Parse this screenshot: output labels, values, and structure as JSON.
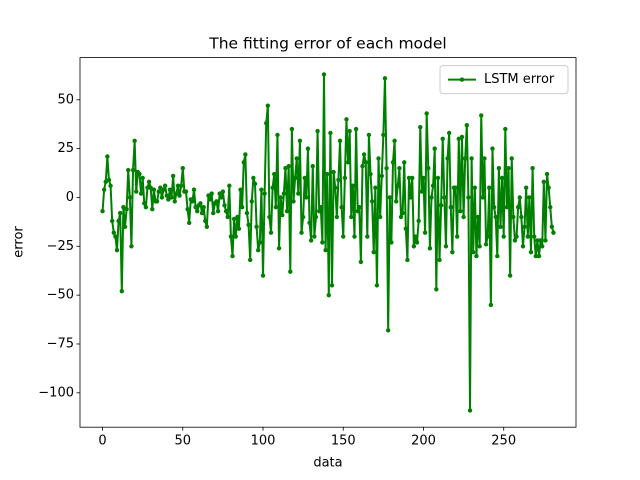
{
  "chart_data": {
    "type": "line",
    "title": "The fitting error of each model",
    "xlabel": "data",
    "ylabel": "error",
    "x": [
      0,
      1,
      2,
      3,
      4,
      5,
      6,
      7,
      8,
      9,
      10,
      11,
      12,
      13,
      14,
      15,
      16,
      17,
      18,
      19,
      20,
      21,
      22,
      23,
      24,
      25,
      26,
      27,
      28,
      29,
      30,
      31,
      32,
      33,
      34,
      35,
      36,
      37,
      38,
      39,
      40,
      41,
      42,
      43,
      44,
      45,
      46,
      47,
      48,
      49,
      50,
      51,
      52,
      53,
      54,
      55,
      56,
      57,
      58,
      59,
      60,
      61,
      62,
      63,
      64,
      65,
      66,
      67,
      68,
      69,
      70,
      71,
      72,
      73,
      74,
      75,
      76,
      77,
      78,
      79,
      80,
      81,
      82,
      83,
      84,
      85,
      86,
      87,
      88,
      89,
      90,
      91,
      92,
      93,
      94,
      95,
      96,
      97,
      98,
      99,
      100,
      101,
      102,
      103,
      104,
      105,
      106,
      107,
      108,
      109,
      110,
      111,
      112,
      113,
      114,
      115,
      116,
      117,
      118,
      119,
      120,
      121,
      122,
      123,
      124,
      125,
      126,
      127,
      128,
      129,
      130,
      131,
      132,
      133,
      134,
      135,
      136,
      137,
      138,
      139,
      140,
      141,
      142,
      143,
      144,
      145,
      146,
      147,
      148,
      149,
      150,
      151,
      152,
      153,
      154,
      155,
      156,
      157,
      158,
      159,
      160,
      161,
      162,
      163,
      164,
      165,
      166,
      167,
      168,
      169,
      170,
      171,
      172,
      173,
      174,
      175,
      176,
      177,
      178,
      179,
      180,
      181,
      182,
      183,
      184,
      185,
      186,
      187,
      188,
      189,
      190,
      191,
      192,
      193,
      194,
      195,
      196,
      197,
      198,
      199,
      200,
      201,
      202,
      203,
      204,
      205,
      206,
      207,
      208,
      209,
      210,
      211,
      212,
      213,
      214,
      215,
      216,
      217,
      218,
      219,
      220,
      221,
      222,
      223,
      224,
      225,
      226,
      227,
      228,
      229,
      230,
      231,
      232,
      233,
      234,
      235,
      236,
      237,
      238,
      239,
      240,
      241,
      242,
      243,
      244,
      245,
      246,
      247,
      248,
      249,
      250,
      251,
      252,
      253,
      254,
      255,
      256,
      257,
      258,
      259,
      260,
      261,
      262,
      263,
      264,
      265,
      266,
      267,
      268,
      269,
      270,
      271,
      272,
      273,
      274,
      275,
      276,
      277,
      278,
      279,
      280,
      281
    ],
    "series": [
      {
        "name": "LSTM error",
        "color": "#008000",
        "values": [
          -7,
          4,
          8,
          21,
          9,
          6,
          -12,
          -18,
          -20,
          -27,
          -12,
          -8,
          -48,
          -5,
          -15,
          -6,
          14,
          0,
          -25,
          14,
          29,
          3,
          13,
          12,
          2,
          10,
          -3,
          -5,
          5,
          8,
          5,
          -6,
          4,
          -2,
          -2,
          3,
          5,
          0,
          4,
          6,
          1,
          -1,
          4,
          0,
          11,
          -2,
          2,
          6,
          1,
          6,
          15,
          3,
          3,
          -6,
          -13,
          -1,
          -2,
          4,
          -5,
          -7,
          -4,
          -3,
          -8,
          -5,
          -12,
          -15,
          1,
          -1,
          2,
          -8,
          -3,
          -2,
          -7,
          2,
          0,
          3,
          -4,
          -7,
          -10,
          6,
          -20,
          -30,
          -11,
          -20,
          -10,
          -16,
          4,
          -5,
          18,
          22,
          -8,
          -14,
          -32,
          -2,
          10,
          7,
          -15,
          -27,
          -23,
          4,
          -40,
          2,
          38,
          47,
          -10,
          -18,
          5,
          12,
          -5,
          32,
          -26,
          0,
          -9,
          2,
          15,
          -7,
          16,
          -38,
          35,
          -2,
          10,
          20,
          2,
          29,
          -18,
          -10,
          10,
          0,
          25,
          -13,
          -22,
          16,
          -20,
          -10,
          34,
          -7,
          -5,
          -23,
          63,
          -27,
          12,
          -50,
          33,
          -45,
          13,
          5,
          -10,
          9,
          29,
          -5,
          -20,
          10,
          40,
          18,
          34,
          -10,
          6,
          -20,
          35,
          -7,
          -5,
          -33,
          16,
          22,
          18,
          -20,
          32,
          12,
          -2,
          -28,
          5,
          -45,
          20,
          -10,
          11,
          32,
          61,
          15,
          -68,
          0,
          -23,
          18,
          29,
          -2,
          6,
          15,
          -10,
          -8,
          18,
          -16,
          -32,
          10,
          0,
          10,
          -25,
          -20,
          -23,
          -12,
          36,
          3,
          10,
          -18,
          43,
          15,
          -26,
          0,
          6,
          25,
          -47,
          10,
          -32,
          -4,
          30,
          0,
          -25,
          20,
          33,
          -5,
          -28,
          5,
          5,
          -20,
          30,
          -7,
          31,
          -10,
          20,
          37,
          0,
          -109,
          20,
          -28,
          5,
          -30,
          -10,
          -25,
          42,
          0,
          20,
          -24,
          -20,
          5,
          -55,
          25,
          -5,
          -10,
          -30,
          15,
          -15,
          10,
          -20,
          35,
          -5,
          15,
          -40,
          20,
          -10,
          -22,
          -20,
          -5,
          0,
          -10,
          -25,
          -15,
          5,
          -20,
          0,
          -28,
          15,
          -20,
          -30,
          -22,
          -30,
          -22,
          -25,
          8,
          -22,
          12,
          5,
          -5,
          -15,
          -18
        ]
      }
    ],
    "xlim": [
      -14.05,
      295.05
    ],
    "xticks": [
      0,
      50,
      100,
      150,
      200,
      250
    ],
    "ylim": [
      -117.6,
      71.6
    ],
    "yticks": [
      {
        "value": -100,
        "label": "−100"
      },
      {
        "value": -75,
        "label": "−75"
      },
      {
        "value": -50,
        "label": "−50"
      },
      {
        "value": -25,
        "label": "−25"
      },
      0,
      25,
      50
    ],
    "legend": "upper right"
  }
}
